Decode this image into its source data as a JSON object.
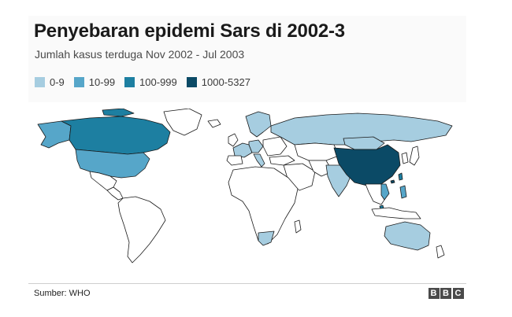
{
  "title": "Penyebaran epidemi Sars di 2002-3",
  "subtitle": "Jumlah kasus terduga Nov 2002 - Jul 2003",
  "legend": [
    {
      "label": "0-9",
      "color": "#a6cde0"
    },
    {
      "label": "10-99",
      "color": "#56a6c9"
    },
    {
      "label": "100-999",
      "color": "#1d7fa1"
    },
    {
      "label": "1000-5327",
      "color": "#0b4a66"
    }
  ],
  "map": {
    "type": "world-choropleth",
    "unaffected_color": "#ffffff",
    "border_color": "#1a1a1a",
    "regions": [
      {
        "region": "China",
        "bin": "1000-5327"
      },
      {
        "region": "Canada",
        "bin": "100-999"
      },
      {
        "region": "Taiwan",
        "bin": "100-999"
      },
      {
        "region": "Hong Kong",
        "bin": "1000-5327"
      },
      {
        "region": "Singapore",
        "bin": "100-999"
      },
      {
        "region": "Vietnam",
        "bin": "10-99"
      },
      {
        "region": "Philippines",
        "bin": "10-99"
      },
      {
        "region": "Mongolia",
        "bin": "0-9"
      },
      {
        "region": "United States",
        "bin": "10-99"
      },
      {
        "region": "Russia",
        "bin": "0-9"
      },
      {
        "region": "India",
        "bin": "0-9"
      },
      {
        "region": "Australia",
        "bin": "0-9"
      },
      {
        "region": "South Africa",
        "bin": "0-9"
      },
      {
        "region": "Europe (several countries)",
        "bin": "0-9"
      },
      {
        "region": "Germany",
        "bin": "0-9"
      }
    ]
  },
  "footer": {
    "source": "Sumber: WHO",
    "logo_letters": [
      "B",
      "B",
      "C"
    ]
  }
}
